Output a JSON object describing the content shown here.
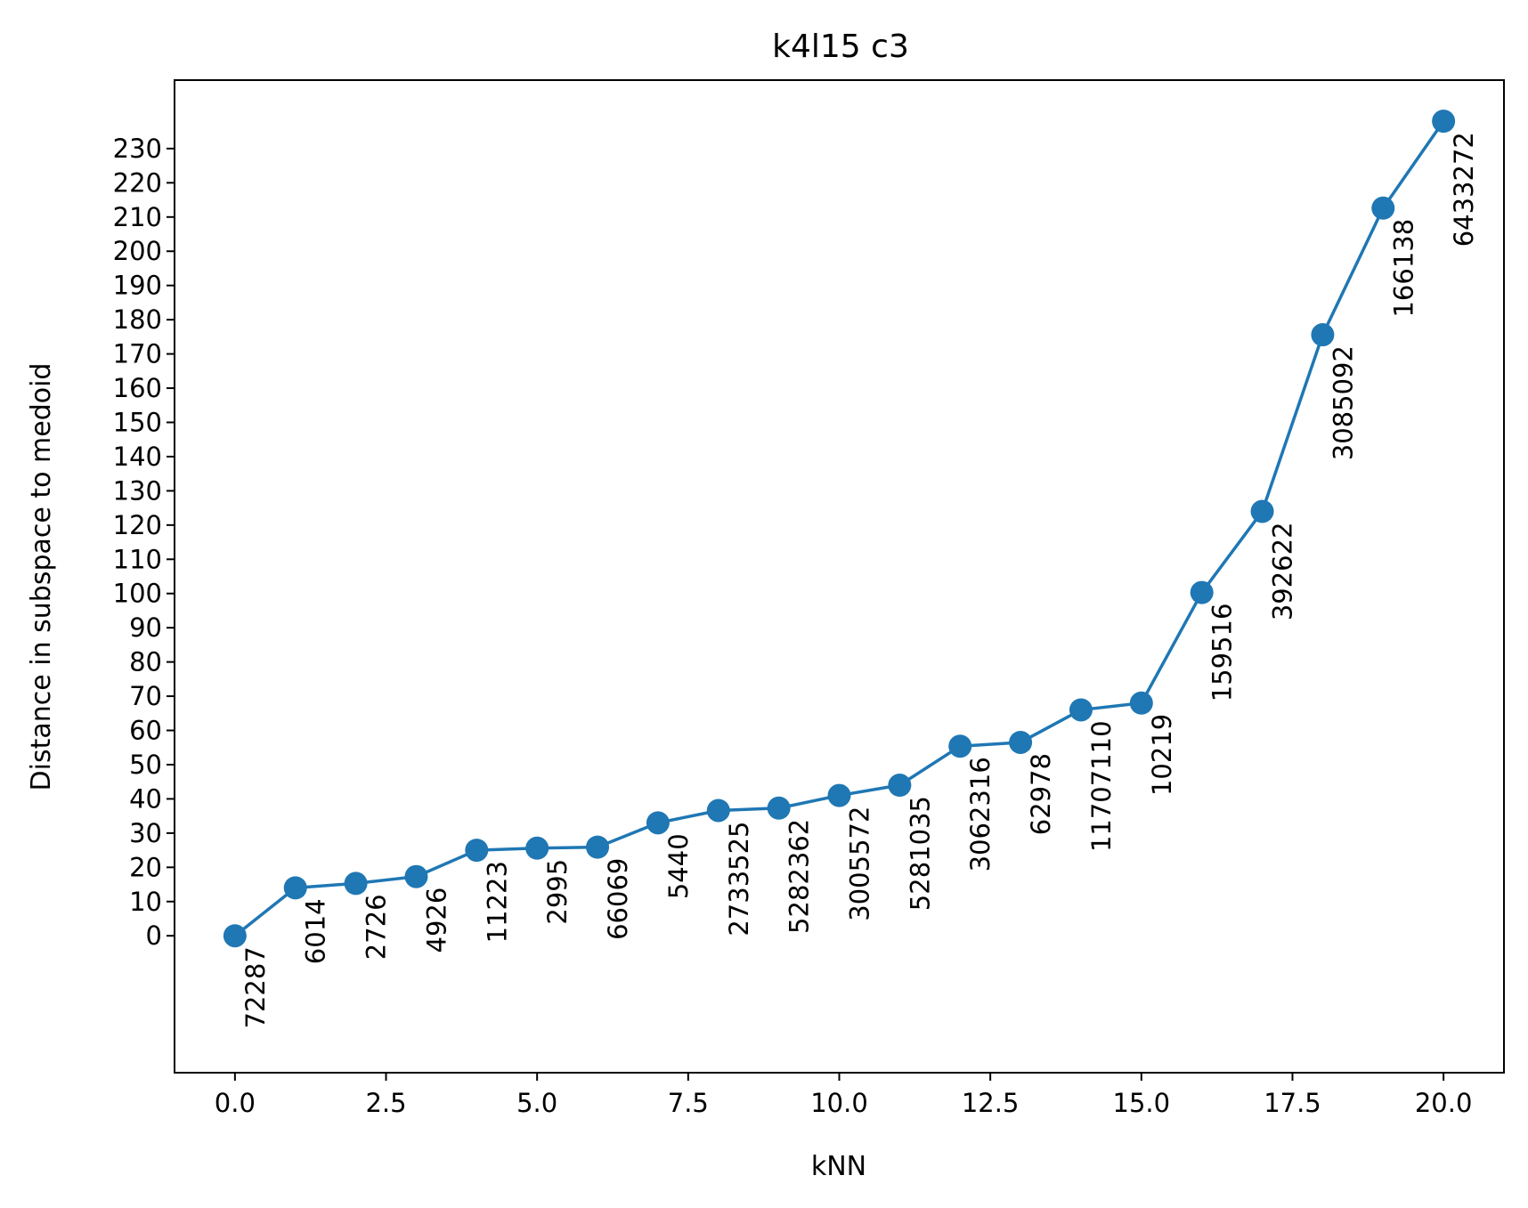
{
  "chart_data": {
    "type": "line",
    "title": "k4l15 c3",
    "xlabel": "kNN",
    "ylabel": "Distance in subspace to medoid",
    "xlim": [
      -1,
      21
    ],
    "ylim": [
      -40,
      250
    ],
    "xticks": [
      0,
      2.5,
      5,
      7.5,
      10,
      12.5,
      15,
      17.5,
      20
    ],
    "xtick_labels": [
      "0.0",
      "2.5",
      "5.0",
      "7.5",
      "10.0",
      "12.5",
      "15.0",
      "17.5",
      "20.0"
    ],
    "yticks": [
      0,
      10,
      20,
      30,
      40,
      50,
      60,
      70,
      80,
      90,
      100,
      110,
      120,
      130,
      140,
      150,
      160,
      170,
      180,
      190,
      200,
      210,
      220,
      230
    ],
    "ytick_labels": [
      "0",
      "10",
      "20",
      "30",
      "40",
      "50",
      "60",
      "70",
      "80",
      "90",
      "100",
      "110",
      "120",
      "130",
      "140",
      "150",
      "160",
      "170",
      "180",
      "190",
      "200",
      "210",
      "220",
      "230"
    ],
    "grid": false,
    "color": "#1f77b4",
    "series": [
      {
        "x": [
          0,
          1,
          2,
          3,
          4,
          5,
          6,
          7,
          8,
          9,
          10,
          11,
          12,
          13,
          14,
          15,
          16,
          17,
          18,
          19,
          20
        ],
        "y": [
          0,
          14,
          15.3,
          17.3,
          25,
          25.6,
          25.9,
          33,
          36.6,
          37.3,
          41,
          44,
          55.4,
          56.5,
          66,
          68,
          100.3,
          124,
          175.6,
          212.6,
          238
        ],
        "labels": [
          "72287",
          "6014",
          "2726",
          "4926",
          "11223",
          "2995",
          "66069",
          "5440",
          "2733525",
          "5282362",
          "3005572",
          "5281035",
          "3062316",
          "62978",
          "11707110",
          "10219",
          "159516",
          "392622",
          "3085092",
          "166138",
          "6433272"
        ]
      }
    ]
  }
}
